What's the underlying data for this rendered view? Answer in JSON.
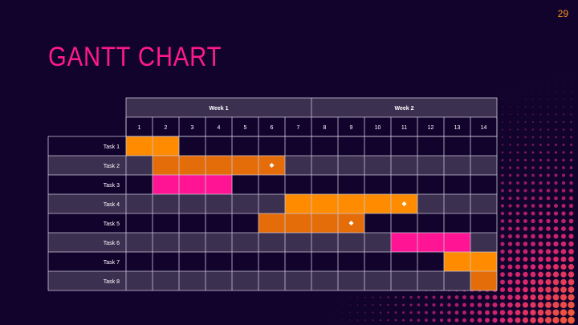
{
  "page_number": "29",
  "title": "GANTT CHART",
  "colors": {
    "background": "#12032d",
    "header_bg": "#3b3050",
    "row_dark": "#12032d",
    "row_light": "#3b3050",
    "grid_line": "#c9c4d6",
    "orange": "#ff8c00",
    "dark_orange": "#e46d0a",
    "pink": "#ff1493",
    "title": "#ff1a8c",
    "page_number": "#f7941d",
    "milestone": "#ffffff"
  },
  "chart_data": {
    "type": "gantt",
    "weeks": [
      {
        "label": "Week 1",
        "start_day": 1,
        "end_day": 7
      },
      {
        "label": "Week 2",
        "start_day": 8,
        "end_day": 14
      }
    ],
    "days": [
      "1",
      "2",
      "3",
      "4",
      "5",
      "6",
      "7",
      "8",
      "9",
      "10",
      "11",
      "12",
      "13",
      "14"
    ],
    "tasks": [
      {
        "label": "Task 1",
        "start": 1,
        "end": 2,
        "color": "orange",
        "milestone": null
      },
      {
        "label": "Task 2",
        "start": 2,
        "end": 6,
        "color": "dark_orange",
        "milestone": 6
      },
      {
        "label": "Task 3",
        "start": 2,
        "end": 4,
        "color": "pink",
        "milestone": null
      },
      {
        "label": "Task 4",
        "start": 7,
        "end": 11,
        "color": "orange",
        "milestone": 11
      },
      {
        "label": "Task 5",
        "start": 6,
        "end": 9,
        "color": "dark_orange",
        "milestone": 9
      },
      {
        "label": "Task 6",
        "start": 11,
        "end": 13,
        "color": "pink",
        "milestone": null
      },
      {
        "label": "Task 7",
        "start": 13,
        "end": 14,
        "color": "orange",
        "milestone": null
      },
      {
        "label": "Task 8",
        "start": 14,
        "end": 14,
        "color": "dark_orange",
        "milestone": null
      }
    ]
  }
}
